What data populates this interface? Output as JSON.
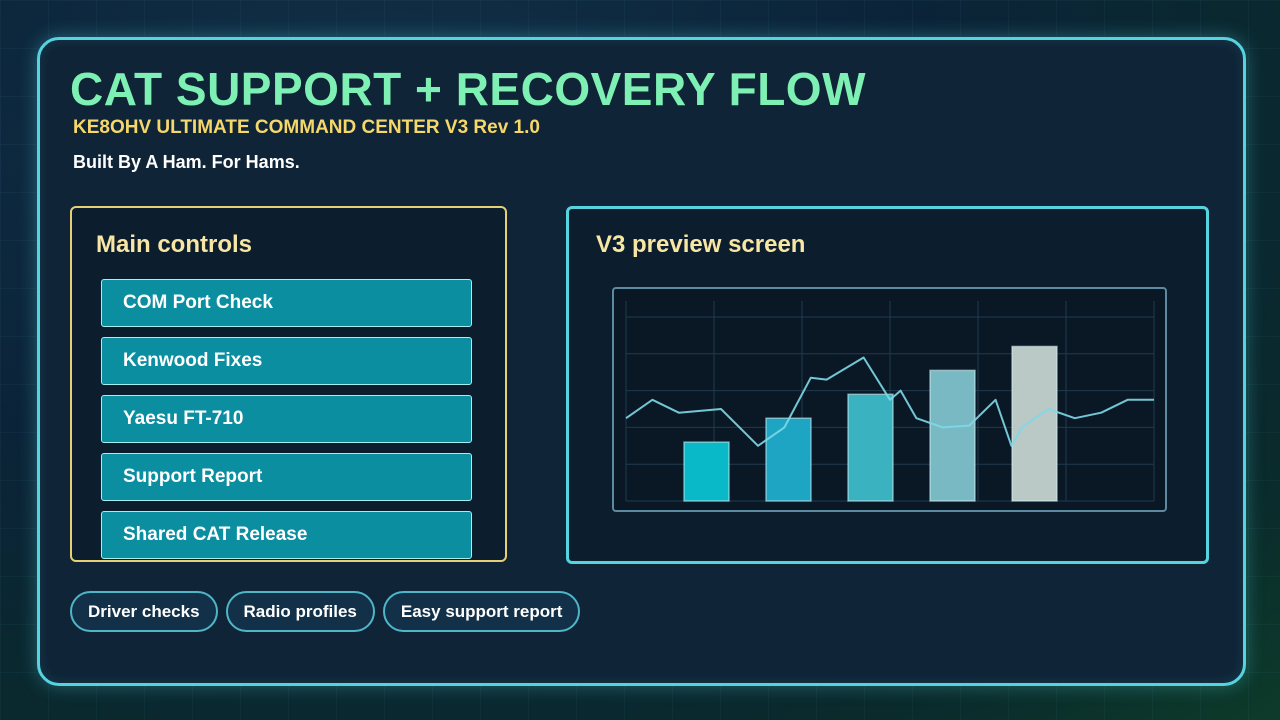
{
  "header": {
    "title": "CAT SUPPORT + RECOVERY FLOW",
    "subtitle": "KE8OHV ULTIMATE COMMAND CENTER V3 Rev 1.0",
    "tagline": "Built By A Ham. For Hams."
  },
  "main_controls": {
    "heading": "Main controls",
    "buttons": [
      {
        "label": "COM Port Check"
      },
      {
        "label": "Kenwood Fixes"
      },
      {
        "label": "Yaesu FT-710"
      },
      {
        "label": "Support Report"
      },
      {
        "label": "Shared CAT Release"
      }
    ]
  },
  "preview": {
    "heading": "V3 preview screen"
  },
  "chart_data": {
    "type": "bar",
    "bars": [
      {
        "value": 0.32,
        "color": "#0ab9c8"
      },
      {
        "value": 0.45,
        "color": "#1ea5c4"
      },
      {
        "value": 0.58,
        "color": "#3ab2bf"
      },
      {
        "value": 0.71,
        "color": "#79b9c4"
      },
      {
        "value": 0.84,
        "color": "#bac8c6"
      }
    ],
    "line": {
      "color": "#7ed9e8",
      "x": [
        0,
        0.05,
        0.1,
        0.18,
        0.25,
        0.3,
        0.35,
        0.38,
        0.45,
        0.5,
        0.52,
        0.55,
        0.6,
        0.65,
        0.7,
        0.73,
        0.75,
        0.8,
        0.85,
        0.9,
        0.95,
        1.0
      ],
      "y": [
        0.45,
        0.55,
        0.48,
        0.5,
        0.3,
        0.4,
        0.67,
        0.66,
        0.78,
        0.55,
        0.6,
        0.45,
        0.4,
        0.41,
        0.55,
        0.3,
        0.4,
        0.5,
        0.45,
        0.48,
        0.55,
        0.55
      ]
    },
    "ylim": [
      0,
      1
    ],
    "grid": true
  },
  "chips": [
    {
      "label": "Driver checks"
    },
    {
      "label": "Radio profiles"
    },
    {
      "label": "Easy support report"
    }
  ]
}
